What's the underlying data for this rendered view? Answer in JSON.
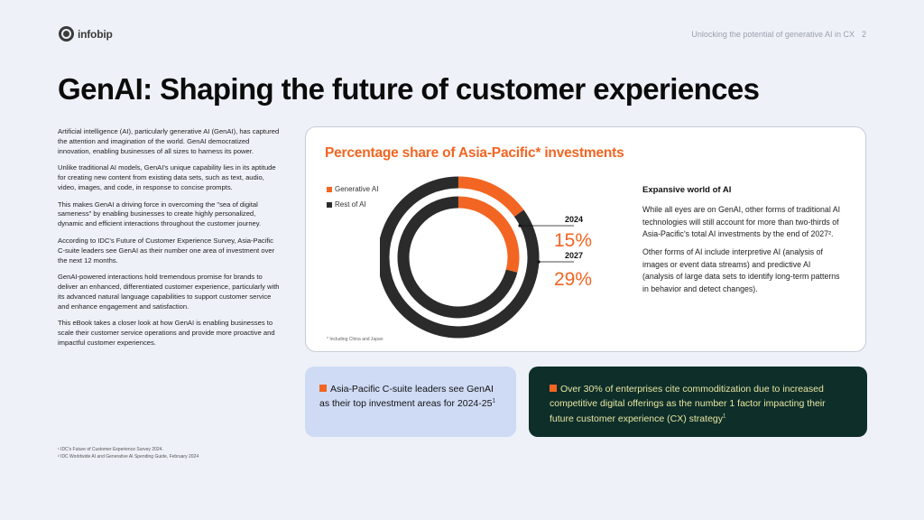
{
  "brand": {
    "logo_text": "infobip"
  },
  "doc_header": {
    "title": "Unlocking the potential of generative AI in CX",
    "page": "2"
  },
  "page_title": "GenAI: Shaping the future of customer experiences",
  "intro_paragraphs": [
    "Artificial intelligence (AI), particularly generative AI (GenAI), has captured the attention and imagination of the world. GenAI democratized innovation, enabling businesses of all sizes to harness its power.",
    "Unlike traditional AI models, GenAI's unique capability lies in its aptitude for creating new content from existing data sets, such as text, audio, video, images, and code, in response to concise prompts.",
    "This makes GenAI a driving force in overcoming the \"sea of digital sameness\" by enabling businesses to create highly personalized, dynamic and efficient interactions throughout the customer journey.",
    "According to IDC's Future of Customer Experience Survey, Asia-Pacific C-suite leaders see GenAI as their number one area of investment over the next 12 months.",
    "GenAI-powered interactions hold tremendous promise for brands to deliver an enhanced, differentiated customer experience, particularly with its advanced natural language capabilities to support customer service and enhance engagement and satisfaction.",
    "This eBook takes a closer look at how GenAI is enabling businesses to scale their customer service operations and provide more proactive and impactful customer experiences."
  ],
  "footnotes": [
    "¹ IDC's Future of Customer Experience Survey 2024.",
    "² IDC Worldwide AI and Generative AI Spending Guide, February 2024"
  ],
  "chart_data": {
    "type": "pie",
    "title": "Percentage share of Asia-Pacific* investments",
    "legend": [
      "Generative AI",
      "Rest of AI"
    ],
    "series": [
      {
        "name": "2024",
        "label": "15%",
        "values": [
          15,
          85
        ]
      },
      {
        "name": "2027",
        "label": "29%",
        "values": [
          29,
          71
        ]
      }
    ],
    "colors": {
      "Generative AI": "#f26522",
      "Rest of AI": "#2b2b2b"
    },
    "note": "* Including China and Japan"
  },
  "side_panel": {
    "heading": "Expansive world of AI",
    "p1": "While all eyes are on GenAI, other forms of traditional AI technologies will still account for more than two-thirds of Asia-Pacific's total AI investments by the end of 2027²",
    "p1_end": ".",
    "p2": "Other forms of AI include interpretive AI (analysis of images or event data streams) and predictive AI (analysis of large data sets to identify long-term patterns in behavior and detect changes)."
  },
  "callouts": {
    "left": {
      "text": "Asia-Pacific C-suite leaders see GenAI as their top investment areas for 2024-25",
      "sup": "1"
    },
    "right": {
      "text": "Over 30% of enterprises cite commoditization due to increased competitive digital offerings as the number 1 factor impacting their future customer experience (CX) strategy",
      "sup": "1"
    }
  },
  "colors": {
    "accent": "#f26522",
    "dark": "#2b2b2b",
    "callout_dark_bg": "#0e2e2a",
    "callout_dark_text": "#e8e6a0",
    "callout_light_bg": "#cfdbf5"
  }
}
